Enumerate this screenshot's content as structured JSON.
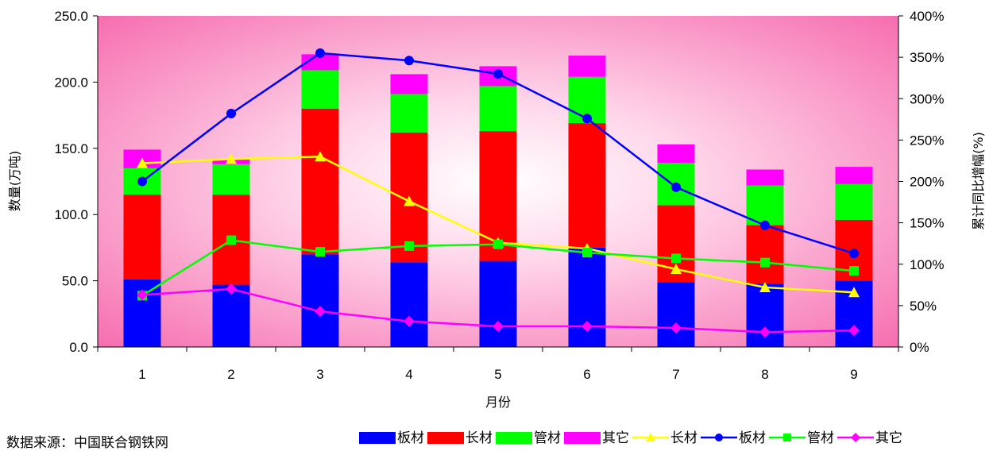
{
  "chart_data": {
    "type": "bar",
    "stacked": true,
    "categories": [
      "1",
      "2",
      "3",
      "4",
      "5",
      "6",
      "7",
      "8",
      "9"
    ],
    "xlabel": "月份",
    "ylabel": "数量(万吨)",
    "y2label": "累计同比增幅(%)",
    "ylim": [
      0,
      250
    ],
    "y_ticks": [
      "0.0",
      "50.0",
      "100.0",
      "150.0",
      "200.0",
      "250.0"
    ],
    "y2lim": [
      0,
      400
    ],
    "y2_ticks": [
      "0%",
      "50%",
      "100%",
      "150%",
      "200%",
      "250%",
      "300%",
      "350%",
      "400%"
    ],
    "bar_series": [
      {
        "name": "板材",
        "color": "#0000ff",
        "values": [
          51,
          47,
          70,
          64,
          65,
          75,
          49,
          48,
          50
        ]
      },
      {
        "name": "长材",
        "color": "#ff0000",
        "values": [
          64,
          68,
          110,
          98,
          98,
          94,
          58,
          44,
          46
        ]
      },
      {
        "name": "管材",
        "color": "#00ff00",
        "values": [
          20,
          23,
          29,
          29,
          34,
          35,
          32,
          30,
          27
        ]
      },
      {
        "name": "其它",
        "color": "#ff00ff",
        "values": [
          14,
          4,
          12,
          15,
          15,
          16,
          14,
          12,
          13
        ]
      }
    ],
    "line_series": [
      {
        "name": "长材",
        "color": "#ffff00",
        "marker": "triangle",
        "values": [
          222,
          227,
          230,
          176,
          126,
          119,
          94,
          72,
          66
        ]
      },
      {
        "name": "板材",
        "color": "#0000ff",
        "marker": "circle",
        "values": [
          200,
          282,
          355,
          346,
          330,
          276,
          193,
          147,
          113
        ]
      },
      {
        "name": "管材",
        "color": "#00ff00",
        "marker": "square",
        "values": [
          62,
          129,
          115,
          122,
          124,
          114,
          107,
          102,
          92
        ]
      },
      {
        "name": "其它",
        "color": "#ff00ff",
        "marker": "diamond",
        "values": [
          63,
          70,
          43,
          31,
          25,
          25,
          23,
          18,
          20
        ]
      }
    ],
    "legend_order": [
      {
        "kind": "bar",
        "index": 0
      },
      {
        "kind": "bar",
        "index": 1
      },
      {
        "kind": "bar",
        "index": 2
      },
      {
        "kind": "bar",
        "index": 3
      },
      {
        "kind": "line",
        "index": 0
      },
      {
        "kind": "line",
        "index": 1
      },
      {
        "kind": "line",
        "index": 2
      },
      {
        "kind": "line",
        "index": 3
      }
    ],
    "legend_position": "bottom-right",
    "grid": false,
    "background": "pink-radial"
  },
  "footer": {
    "source": "数据来源：中国联合钢铁网"
  }
}
